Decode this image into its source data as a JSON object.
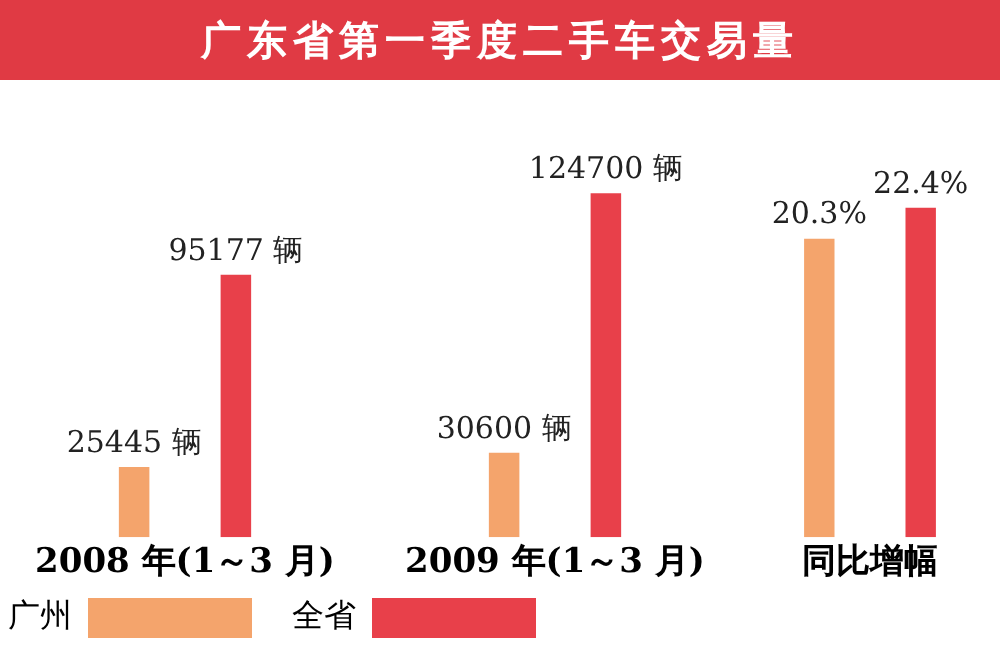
{
  "chart_data": [
    {
      "type": "bar",
      "title": "广东省第一季度二手车交易量",
      "categories": [
        "2008 年(1～3 月)",
        "2009 年(1～3 月)"
      ],
      "series": [
        {
          "name": "广州",
          "color": "#f4a46c",
          "values": [
            25445,
            30600
          ],
          "value_labels": [
            "25445 辆",
            "30600 辆"
          ]
        },
        {
          "name": "全省",
          "color": "#e8404a",
          "values": [
            95177,
            124700
          ],
          "value_labels": [
            "95177 辆",
            "124700 辆"
          ]
        }
      ],
      "grid": false,
      "legend": "bottom left",
      "tick_labels": "x"
    },
    {
      "type": "bar",
      "categories": [
        "同比增幅"
      ],
      "series": [
        {
          "color": "#f4a46c",
          "values": [
            20.3
          ],
          "value_labels": [
            "20.3%"
          ]
        },
        {
          "color": "#e8404a",
          "values": [
            22.4
          ],
          "value_labels": [
            "22.4%"
          ]
        }
      ],
      "grid": false,
      "tick_labels": "x"
    }
  ]
}
